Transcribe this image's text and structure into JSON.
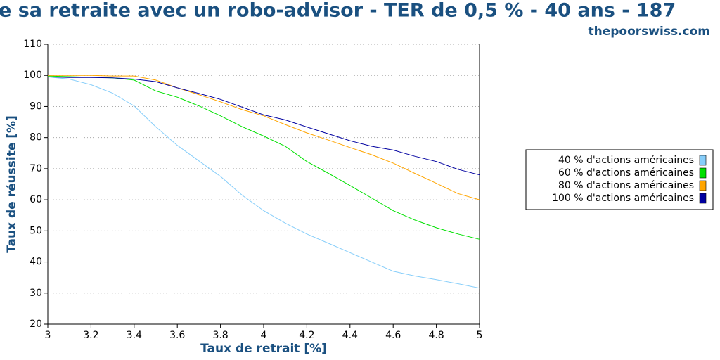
{
  "chart_data": {
    "type": "line",
    "title": "e sa retraite avec un robo-advisor - TER de 0,5 % - 40 ans - 187",
    "subtitle": "thepoorswiss.com",
    "x_label": "Taux de retrait [%]",
    "y_label": "Taux de réussite [%]",
    "x": [
      3.0,
      3.1,
      3.2,
      3.3,
      3.4,
      3.5,
      3.6,
      3.7,
      3.8,
      3.9,
      4.0,
      4.1,
      4.2,
      4.3,
      4.4,
      4.5,
      4.6,
      4.7,
      4.8,
      4.9,
      5.0
    ],
    "series": [
      {
        "name": "40 % d'actions américaines",
        "color": "#87cefa",
        "values": [
          99.5,
          98.8,
          97,
          94.3,
          90.2,
          83.5,
          77.5,
          72.5,
          67.5,
          61.5,
          56.5,
          52.5,
          49,
          46,
          43,
          40,
          37,
          35.5,
          34.3,
          33,
          31.6
        ]
      },
      {
        "name": "60 % d'actions américaines",
        "color": "#00e000",
        "values": [
          99.8,
          99.6,
          99.4,
          99.2,
          98.5,
          95,
          93,
          90.2,
          87,
          83.5,
          80.5,
          77.2,
          72.3,
          68.5,
          64.6,
          60.6,
          56.5,
          53.5,
          51,
          49,
          47.3
        ]
      },
      {
        "name": "80 % d'actions américaines",
        "color": "#ffa500",
        "values": [
          100,
          100,
          100,
          99.8,
          99.8,
          98.5,
          96,
          93.8,
          91.5,
          89,
          87,
          84.2,
          81.5,
          79.2,
          76.8,
          74.5,
          71.8,
          68.5,
          65.3,
          62,
          60
        ]
      },
      {
        "name": "100 % d'actions américaines",
        "color": "#0000a0",
        "values": [
          99.5,
          99.3,
          99.3,
          99.2,
          98.8,
          98,
          96,
          94.2,
          92.3,
          89.8,
          87.3,
          85.7,
          83.4,
          81.2,
          79,
          77.2,
          76,
          74,
          72.3,
          69.8,
          68
        ]
      }
    ],
    "xlim": [
      3,
      5
    ],
    "xticks": [
      3,
      3.2,
      3.4,
      3.6,
      3.8,
      4,
      4.2,
      4.4,
      4.6,
      4.8,
      5
    ],
    "ylim": [
      20,
      110
    ],
    "yticks": [
      20,
      30,
      40,
      50,
      60,
      70,
      80,
      90,
      100,
      110
    ],
    "grid": true,
    "legend": "right"
  }
}
